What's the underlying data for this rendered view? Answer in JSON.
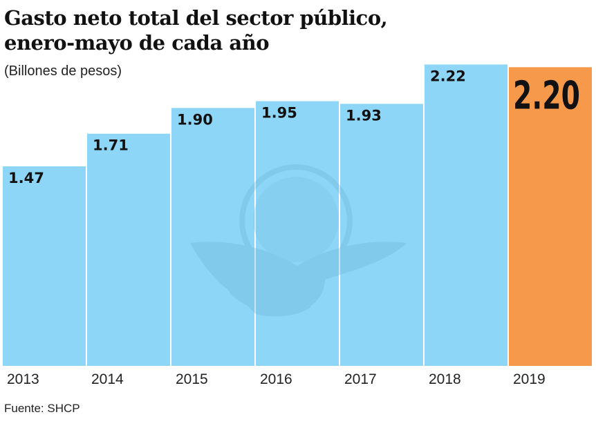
{
  "chart_data": {
    "type": "bar",
    "title": "Gasto neto total del sector público, enero-mayo de cada año",
    "title_lines": [
      "Gasto neto total del sector público,",
      "enero-mayo de cada año"
    ],
    "subtitle": "(Billones de pesos)",
    "xlabel": "",
    "ylabel": "",
    "categories": [
      "2013",
      "2014",
      "2015",
      "2016",
      "2017",
      "2018",
      "2019"
    ],
    "values": [
      1.47,
      1.71,
      1.9,
      1.95,
      1.93,
      2.22,
      2.2
    ],
    "value_labels": [
      "1.47",
      "1.71",
      "1.90",
      "1.95",
      "1.93",
      "2.22",
      "2.20"
    ],
    "highlight_index": 6,
    "ylim": [
      0,
      2.22
    ],
    "grid": false,
    "legend": "none",
    "colors": {
      "bar": "#8dd6f7",
      "highlight": "#f7994b",
      "watermark": "#7cc4e6"
    },
    "source": "Fuente: SHCP"
  }
}
